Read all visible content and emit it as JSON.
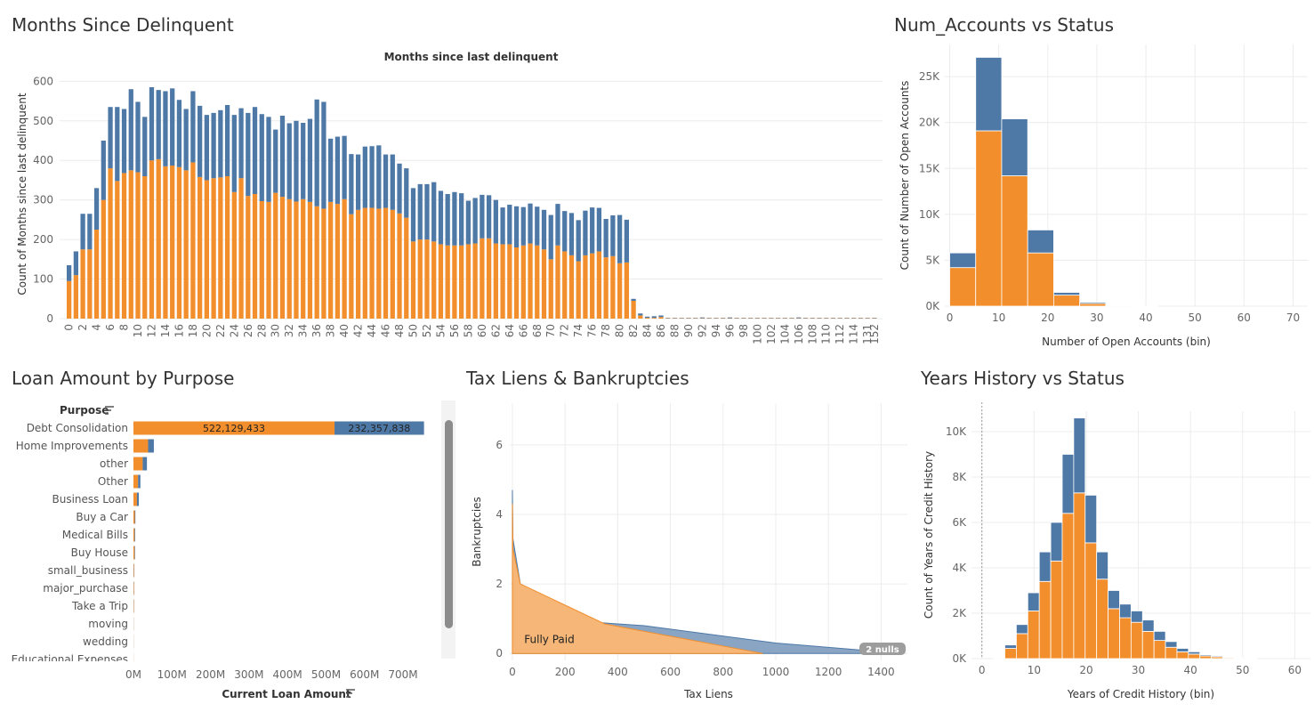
{
  "colors": {
    "orange": "#f28e2b",
    "blue": "#4e79a7",
    "orange_light": "#f5b678",
    "blue_light": "#8aa5c4"
  },
  "panels": {
    "delinquent": {
      "title": "Months Since Delinquent"
    },
    "accounts": {
      "title": "Num_Accounts vs Status"
    },
    "purpose": {
      "title": "Loan Amount by Purpose"
    },
    "liens": {
      "title": "Tax Liens & Bankruptcies"
    },
    "history": {
      "title": "Years History vs Status"
    }
  },
  "chart_data": [
    {
      "id": "delinquent",
      "type": "bar",
      "stacked": true,
      "title": "Months since last delinquent",
      "xlabel": "",
      "ylabel": "Count of Months since last delinquent",
      "ylim": [
        0,
        630
      ],
      "yticks": [
        0,
        100,
        200,
        300,
        400,
        500,
        600
      ],
      "x": [
        0,
        1,
        2,
        3,
        4,
        5,
        6,
        7,
        8,
        9,
        10,
        11,
        12,
        13,
        14,
        15,
        16,
        17,
        18,
        19,
        20,
        21,
        22,
        23,
        24,
        25,
        26,
        27,
        28,
        29,
        30,
        31,
        32,
        33,
        34,
        35,
        36,
        37,
        38,
        39,
        40,
        41,
        42,
        43,
        44,
        45,
        46,
        47,
        48,
        49,
        50,
        51,
        52,
        53,
        54,
        55,
        56,
        57,
        58,
        59,
        60,
        61,
        62,
        63,
        64,
        65,
        66,
        67,
        68,
        69,
        70,
        71,
        72,
        73,
        74,
        75,
        76,
        77,
        78,
        79,
        80,
        81,
        82,
        83,
        84,
        85,
        86,
        87,
        88,
        89,
        90,
        91,
        92,
        93,
        94,
        95,
        96,
        97,
        98,
        99,
        100,
        101,
        102,
        103,
        104,
        105,
        106,
        107,
        108,
        109,
        110,
        111,
        112,
        113,
        114,
        115,
        131,
        152
      ],
      "xticks": [
        "0",
        "2",
        "4",
        "6",
        "8",
        "10",
        "12",
        "14",
        "16",
        "18",
        "20",
        "22",
        "24",
        "26",
        "28",
        "30",
        "32",
        "34",
        "36",
        "38",
        "40",
        "42",
        "44",
        "46",
        "48",
        "50",
        "52",
        "54",
        "56",
        "58",
        "60",
        "62",
        "64",
        "66",
        "68",
        "70",
        "72",
        "74",
        "76",
        "78",
        "80",
        "82",
        "84",
        "86",
        "88",
        "90",
        "92",
        "94",
        "96",
        "98",
        "100",
        "102",
        "104",
        "106",
        "108",
        "110",
        "112",
        "114",
        "131",
        "152"
      ],
      "series": [
        {
          "values": [
            95,
            110,
            175,
            175,
            225,
            300,
            380,
            348,
            368,
            375,
            370,
            360,
            400,
            403,
            385,
            387,
            383,
            375,
            395,
            358,
            350,
            355,
            357,
            360,
            320,
            355,
            310,
            315,
            297,
            295,
            318,
            308,
            302,
            296,
            302,
            295,
            284,
            278,
            295,
            290,
            302,
            264,
            275,
            280,
            280,
            278,
            280,
            275,
            266,
            255,
            195,
            200,
            200,
            195,
            188,
            185,
            185,
            185,
            188,
            190,
            203,
            203,
            190,
            188,
            188,
            180,
            185,
            190,
            185,
            175,
            150,
            185,
            170,
            160,
            145,
            160,
            165,
            170,
            155,
            158,
            140,
            142,
            45,
            8,
            2,
            2,
            4,
            1,
            1,
            1,
            1,
            1,
            1,
            1,
            1,
            1,
            1,
            1,
            1,
            1,
            1,
            1,
            1,
            1,
            1,
            1,
            1,
            1,
            1,
            1,
            1,
            1,
            1,
            1,
            1,
            1,
            1,
            1
          ]
        },
        {
          "values": [
            40,
            60,
            90,
            90,
            105,
            150,
            155,
            187,
            162,
            205,
            178,
            150,
            185,
            175,
            190,
            195,
            170,
            155,
            180,
            180,
            165,
            165,
            170,
            180,
            195,
            177,
            210,
            220,
            220,
            215,
            160,
            205,
            192,
            204,
            193,
            210,
            270,
            270,
            160,
            170,
            160,
            152,
            140,
            155,
            156,
            160,
            135,
            140,
            126,
            125,
            135,
            140,
            140,
            150,
            135,
            130,
            135,
            132,
            110,
            115,
            110,
            109,
            110,
            93,
            100,
            104,
            97,
            101,
            98,
            100,
            112,
            105,
            102,
            107,
            104,
            113,
            116,
            110,
            97,
            103,
            122,
            108,
            5,
            5,
            3,
            4,
            4,
            1,
            1,
            1,
            1,
            1,
            2,
            1,
            1,
            1,
            2,
            1,
            1,
            1,
            1,
            1,
            1,
            1,
            1,
            1,
            2,
            1,
            1,
            1,
            1,
            1,
            1,
            1,
            1,
            1,
            1,
            1
          ]
        }
      ]
    },
    {
      "id": "accounts",
      "type": "bar",
      "stacked": true,
      "xlabel": "Number of Open Accounts (bin)",
      "ylabel": "Count of Number of Open Accounts",
      "xlim": [
        -1,
        73
      ],
      "ylim": [
        0,
        28500
      ],
      "xticks": [
        0,
        10,
        20,
        30,
        40,
        50,
        60,
        70
      ],
      "ytick_values": [
        0,
        5000,
        10000,
        15000,
        20000,
        25000
      ],
      "ytick_labels": [
        "0K",
        "5K",
        "10K",
        "15K",
        "20K",
        "25K"
      ],
      "bin_width": 5.3,
      "bins": [
        0,
        5.3,
        10.6,
        15.9,
        21.2,
        26.5,
        31.8,
        37.1
      ],
      "series": [
        {
          "values": [
            4200,
            19100,
            14200,
            5800,
            1200,
            280,
            60,
            10
          ]
        },
        {
          "values": [
            1600,
            8000,
            6200,
            2500,
            300,
            140,
            35,
            10
          ]
        }
      ]
    },
    {
      "id": "purpose",
      "type": "bar",
      "orientation": "horizontal",
      "stacked": true,
      "header": "Purpose",
      "xlabel": "Current Loan Amount",
      "xlim": [
        0,
        760000000
      ],
      "xtick_values": [
        0,
        100000000,
        200000000,
        300000000,
        400000000,
        500000000,
        600000000,
        700000000
      ],
      "xtick_labels": [
        "0M",
        "100M",
        "200M",
        "300M",
        "400M",
        "500M",
        "600M",
        "700M"
      ],
      "categories": [
        "Debt Consolidation",
        "Home Improvements",
        "other",
        "Other",
        "Business Loan",
        "Buy a Car",
        "Medical Bills",
        "Buy House",
        "small_business",
        "major_purchase",
        "Take a Trip",
        "moving",
        "wedding",
        "Educational Expenses"
      ],
      "series": [
        {
          "values": [
            522129433,
            38000000,
            24000000,
            12000000,
            9000000,
            3500000,
            3000000,
            3000000,
            1500000,
            1200000,
            1000000,
            400000,
            300000,
            200000
          ]
        },
        {
          "values": [
            232357838,
            15000000,
            11000000,
            6000000,
            5000000,
            1500000,
            1500000,
            1200000,
            700000,
            500000,
            500000,
            200000,
            150000,
            100000
          ]
        }
      ],
      "data_labels": [
        "522,129,433",
        "232,357,838"
      ]
    },
    {
      "id": "liens",
      "type": "area",
      "xlabel": "Tax Liens",
      "ylabel": "Bankruptcies",
      "xlim": [
        -10,
        1500
      ],
      "ylim": [
        -0.2,
        7.2
      ],
      "xticks": [
        0,
        200,
        400,
        600,
        800,
        1000,
        1200,
        1400
      ],
      "yticks": [
        0,
        2,
        4,
        6
      ],
      "series": [
        {
          "name": "Fully Paid",
          "x": [
            0,
            2,
            30,
            350,
            950
          ],
          "y": [
            4.3,
            3.0,
            2.0,
            0.85,
            0
          ]
        },
        {
          "x": [
            0,
            2,
            30,
            300,
            500,
            1000,
            1400,
            1470
          ],
          "y": [
            4.7,
            3.3,
            2.0,
            0.9,
            0.8,
            0.3,
            0.05,
            0
          ]
        }
      ],
      "annotation": "2 nulls"
    },
    {
      "id": "history",
      "type": "bar",
      "stacked": true,
      "xlabel": "Years of Credit History (bin)",
      "ylabel": "Count of Years of Credit History",
      "xlim": [
        -2,
        63
      ],
      "ylim": [
        0,
        10900
      ],
      "xticks": [
        0,
        10,
        20,
        30,
        40,
        50,
        60
      ],
      "ytick_values": [
        0,
        2000,
        4000,
        6000,
        8000,
        10000
      ],
      "ytick_labels": [
        "0K",
        "2K",
        "4K",
        "6K",
        "8K",
        "10K"
      ],
      "bin_width": 2.2,
      "bins": [
        2.2,
        4.4,
        6.6,
        8.8,
        11.0,
        13.2,
        15.4,
        17.6,
        19.8,
        22.0,
        24.2,
        26.4,
        28.6,
        30.8,
        33.0,
        35.2,
        37.4,
        39.6,
        41.8,
        44.0,
        46.2,
        48.4,
        50.6
      ],
      "series": [
        {
          "values": [
            20,
            450,
            1100,
            2100,
            3400,
            4300,
            6400,
            7300,
            5100,
            3500,
            2200,
            1800,
            1600,
            1200,
            800,
            500,
            300,
            200,
            120,
            80,
            40,
            20,
            10
          ]
        },
        {
          "values": [
            20,
            150,
            400,
            800,
            1300,
            1700,
            2600,
            3300,
            2100,
            1200,
            800,
            600,
            500,
            500,
            400,
            250,
            150,
            100,
            50,
            40,
            20,
            10,
            5
          ]
        }
      ]
    }
  ]
}
